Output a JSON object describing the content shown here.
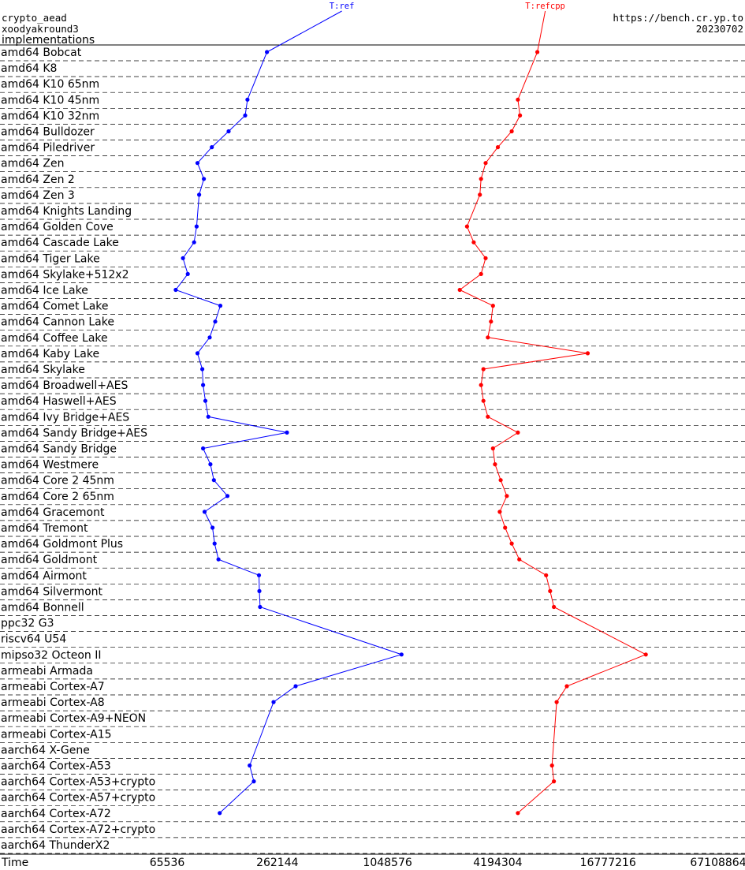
{
  "header": {
    "line1": "crypto_aead",
    "line2": "xoodyakround3",
    "line3": "implementations",
    "site": "https://bench.cr.yp.to",
    "date": "20230702"
  },
  "chart_data": {
    "type": "line",
    "x_axis": {
      "label": "Time",
      "scale": "log2",
      "ticks": [
        65536,
        262144,
        1048576,
        4194304,
        16777216,
        67108864
      ],
      "tick_labels": [
        "65536",
        "262144",
        "1048576",
        "4194304",
        "16777216",
        "67108864"
      ]
    },
    "categories": [
      "amd64 Bobcat",
      "amd64 K8",
      "amd64 K10 65nm",
      "amd64 K10 45nm",
      "amd64 K10 32nm",
      "amd64 Bulldozer",
      "amd64 Piledriver",
      "amd64 Zen",
      "amd64 Zen 2",
      "amd64 Zen 3",
      "amd64 Knights Landing",
      "amd64 Golden Cove",
      "amd64 Cascade Lake",
      "amd64 Tiger Lake",
      "amd64 Skylake+512x2",
      "amd64 Ice Lake",
      "amd64 Comet Lake",
      "amd64 Cannon Lake",
      "amd64 Coffee Lake",
      "amd64 Kaby Lake",
      "amd64 Skylake",
      "amd64 Broadwell+AES",
      "amd64 Haswell+AES",
      "amd64 Ivy Bridge+AES",
      "amd64 Sandy Bridge+AES",
      "amd64 Sandy Bridge",
      "amd64 Westmere",
      "amd64 Core 2 45nm",
      "amd64 Core 2 65nm",
      "amd64 Gracemont",
      "amd64 Tremont",
      "amd64 Goldmont Plus",
      "amd64 Goldmont",
      "amd64 Airmont",
      "amd64 Silvermont",
      "amd64 Bonnell",
      "ppc32 G3",
      "riscv64 U54",
      "mipso32 Octeon II",
      "armeabi Armada",
      "armeabi Cortex-A7",
      "armeabi Cortex-A8",
      "armeabi Cortex-A9+NEON",
      "armeabi Cortex-A15",
      "aarch64 X-Gene",
      "aarch64 Cortex-A53",
      "aarch64 Cortex-A53+crypto",
      "aarch64 Cortex-A57+crypto",
      "aarch64 Cortex-A72",
      "aarch64 Cortex-A72+crypto",
      "aarch64 ThunderX2"
    ],
    "series": [
      {
        "name": "T:ref",
        "color": "#0000ff",
        "points": [
          {
            "cat": 0,
            "x": 230000
          },
          {
            "cat": 3,
            "x": 180000
          },
          {
            "cat": 4,
            "x": 175000
          },
          {
            "cat": 5,
            "x": 142000
          },
          {
            "cat": 6,
            "x": 115000
          },
          {
            "cat": 7,
            "x": 96000
          },
          {
            "cat": 8,
            "x": 104000
          },
          {
            "cat": 9,
            "x": 98000
          },
          {
            "cat": 11,
            "x": 95000
          },
          {
            "cat": 12,
            "x": 92000
          },
          {
            "cat": 13,
            "x": 80000
          },
          {
            "cat": 14,
            "x": 85000
          },
          {
            "cat": 15,
            "x": 73000
          },
          {
            "cat": 16,
            "x": 128000
          },
          {
            "cat": 17,
            "x": 120000
          },
          {
            "cat": 18,
            "x": 112000
          },
          {
            "cat": 19,
            "x": 96000
          },
          {
            "cat": 20,
            "x": 102000
          },
          {
            "cat": 21,
            "x": 103000
          },
          {
            "cat": 22,
            "x": 106000
          },
          {
            "cat": 23,
            "x": 110000
          },
          {
            "cat": 24,
            "x": 296000
          },
          {
            "cat": 25,
            "x": 103000
          },
          {
            "cat": 26,
            "x": 113000
          },
          {
            "cat": 27,
            "x": 118000
          },
          {
            "cat": 28,
            "x": 140000
          },
          {
            "cat": 29,
            "x": 105000
          },
          {
            "cat": 30,
            "x": 116000
          },
          {
            "cat": 31,
            "x": 119000
          },
          {
            "cat": 32,
            "x": 125000
          },
          {
            "cat": 33,
            "x": 208000
          },
          {
            "cat": 34,
            "x": 209000
          },
          {
            "cat": 35,
            "x": 211000
          },
          {
            "cat": 38,
            "x": 1250000
          },
          {
            "cat": 40,
            "x": 330000
          },
          {
            "cat": 41,
            "x": 250000
          },
          {
            "cat": 45,
            "x": 185000
          },
          {
            "cat": 46,
            "x": 195000
          },
          {
            "cat": 48,
            "x": 127000
          }
        ]
      },
      {
        "name": "T:refcpp",
        "color": "#ff0000",
        "points": [
          {
            "cat": 0,
            "x": 6900000
          },
          {
            "cat": 3,
            "x": 5400000
          },
          {
            "cat": 4,
            "x": 5550000
          },
          {
            "cat": 5,
            "x": 5000000
          },
          {
            "cat": 6,
            "x": 4200000
          },
          {
            "cat": 7,
            "x": 3600000
          },
          {
            "cat": 8,
            "x": 3400000
          },
          {
            "cat": 9,
            "x": 3350000
          },
          {
            "cat": 11,
            "x": 2850000
          },
          {
            "cat": 12,
            "x": 3100000
          },
          {
            "cat": 13,
            "x": 3600000
          },
          {
            "cat": 14,
            "x": 3400000
          },
          {
            "cat": 15,
            "x": 2600000
          },
          {
            "cat": 16,
            "x": 3950000
          },
          {
            "cat": 17,
            "x": 3850000
          },
          {
            "cat": 18,
            "x": 3700000
          },
          {
            "cat": 19,
            "x": 13000000
          },
          {
            "cat": 20,
            "x": 3500000
          },
          {
            "cat": 21,
            "x": 3400000
          },
          {
            "cat": 22,
            "x": 3500000
          },
          {
            "cat": 23,
            "x": 3700000
          },
          {
            "cat": 24,
            "x": 5400000
          },
          {
            "cat": 25,
            "x": 3950000
          },
          {
            "cat": 26,
            "x": 4050000
          },
          {
            "cat": 27,
            "x": 4350000
          },
          {
            "cat": 28,
            "x": 4700000
          },
          {
            "cat": 29,
            "x": 4300000
          },
          {
            "cat": 30,
            "x": 4600000
          },
          {
            "cat": 31,
            "x": 5000000
          },
          {
            "cat": 32,
            "x": 5500000
          },
          {
            "cat": 33,
            "x": 7700000
          },
          {
            "cat": 34,
            "x": 8100000
          },
          {
            "cat": 35,
            "x": 8500000
          },
          {
            "cat": 38,
            "x": 27000000
          },
          {
            "cat": 40,
            "x": 10000000
          },
          {
            "cat": 41,
            "x": 8800000
          },
          {
            "cat": 45,
            "x": 8300000
          },
          {
            "cat": 46,
            "x": 8500000
          },
          {
            "cat": 48,
            "x": 5400000
          }
        ]
      }
    ]
  }
}
